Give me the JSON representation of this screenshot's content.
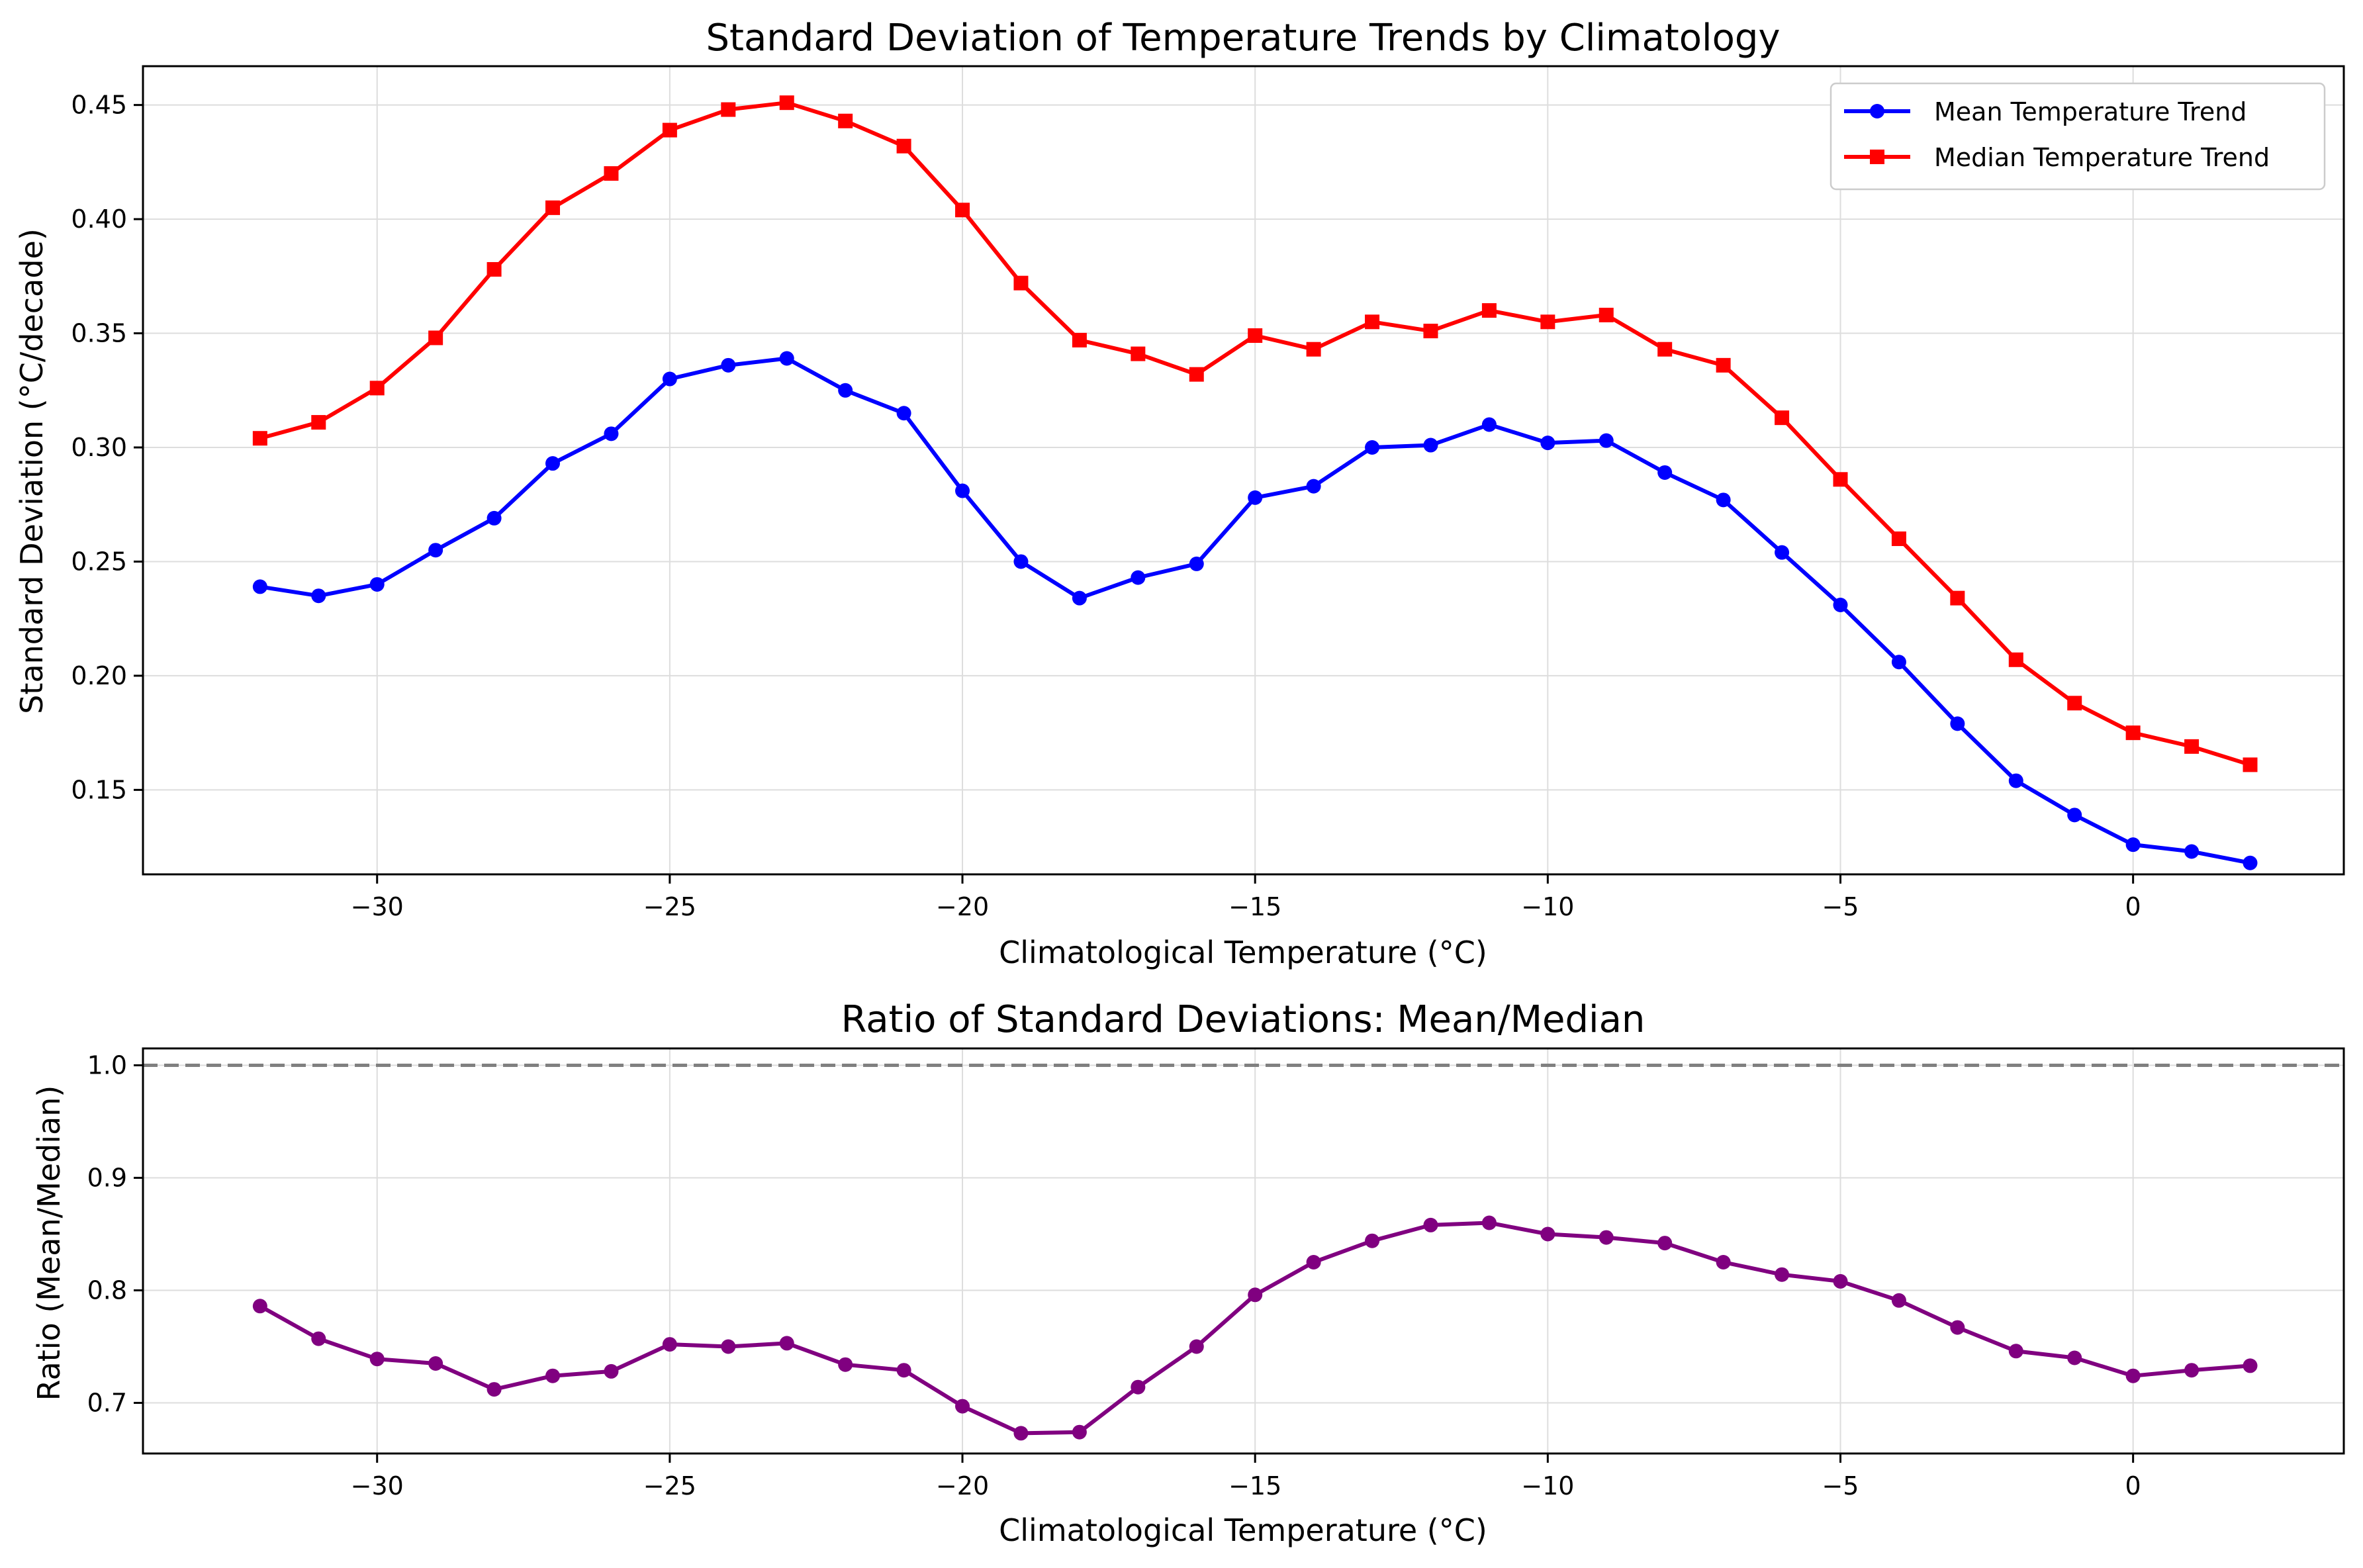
{
  "chart_data": [
    {
      "type": "line",
      "title": "Standard Deviation of Temperature Trends by Climatology",
      "xlabel": "Climatological Temperature (°C)",
      "ylabel": "Standard Deviation (°C/decade)",
      "xlim": [
        -34,
        3.6
      ],
      "ylim": [
        0.113,
        0.467
      ],
      "xticks": [
        -30,
        -25,
        -20,
        -15,
        -10,
        -5,
        0
      ],
      "xtick_labels": [
        "−30",
        "−25",
        "−20",
        "−15",
        "−10",
        "−5",
        "0"
      ],
      "yticks": [
        0.15,
        0.2,
        0.25,
        0.3,
        0.35,
        0.4,
        0.45
      ],
      "ytick_labels": [
        "0.15",
        "0.20",
        "0.25",
        "0.30",
        "0.35",
        "0.40",
        "0.45"
      ],
      "grid": true,
      "legend": "top-right",
      "x": [
        -32,
        -31,
        -30,
        -29,
        -28,
        -27,
        -26,
        -25,
        -24,
        -23,
        -22,
        -21,
        -20,
        -19,
        -18,
        -17,
        -16,
        -15,
        -14,
        -13,
        -12,
        -11,
        -10,
        -9,
        -8,
        -7,
        -6,
        -5,
        -4,
        -3,
        -2,
        -1,
        0,
        1,
        2
      ],
      "series": [
        {
          "name": "Mean Temperature Trend",
          "color": "#0000ff",
          "marker": "circle",
          "values": [
            0.239,
            0.235,
            0.24,
            0.255,
            0.269,
            0.293,
            0.306,
            0.33,
            0.336,
            0.339,
            0.325,
            0.315,
            0.281,
            0.25,
            0.234,
            0.243,
            0.249,
            0.278,
            0.283,
            0.3,
            0.301,
            0.31,
            0.302,
            0.303,
            0.289,
            0.277,
            0.254,
            0.231,
            0.206,
            0.179,
            0.154,
            0.139,
            0.126,
            0.123,
            0.118
          ]
        },
        {
          "name": "Median Temperature Trend",
          "color": "#ff0000",
          "marker": "square",
          "values": [
            0.304,
            0.311,
            0.326,
            0.348,
            0.378,
            0.405,
            0.42,
            0.439,
            0.448,
            0.451,
            0.443,
            0.432,
            0.404,
            0.372,
            0.347,
            0.341,
            0.332,
            0.349,
            0.343,
            0.355,
            0.351,
            0.36,
            0.355,
            0.358,
            0.343,
            0.336,
            0.313,
            0.286,
            0.26,
            0.234,
            0.207,
            0.188,
            0.175,
            0.169,
            0.161
          ]
        }
      ]
    },
    {
      "type": "line",
      "title": "Ratio of Standard Deviations: Mean/Median",
      "xlabel": "Climatological Temperature (°C)",
      "ylabel": "Ratio (Mean/Median)",
      "xlim": [
        -34,
        3.6
      ],
      "ylim": [
        0.655,
        1.015
      ],
      "xticks": [
        -30,
        -25,
        -20,
        -15,
        -10,
        -5,
        0
      ],
      "xtick_labels": [
        "−30",
        "−25",
        "−20",
        "−15",
        "−10",
        "−5",
        "0"
      ],
      "yticks": [
        0.7,
        0.8,
        0.9,
        1.0
      ],
      "ytick_labels": [
        "0.7",
        "0.8",
        "0.9",
        "1.0"
      ],
      "grid": true,
      "reference_line": {
        "y": 1.0,
        "style": "dashed",
        "color": "#808080"
      },
      "x": [
        -32,
        -31,
        -30,
        -29,
        -28,
        -27,
        -26,
        -25,
        -24,
        -23,
        -22,
        -21,
        -20,
        -19,
        -18,
        -17,
        -16,
        -15,
        -14,
        -13,
        -12,
        -11,
        -10,
        -9,
        -8,
        -7,
        -6,
        -5,
        -4,
        -3,
        -2,
        -1,
        0,
        1,
        2
      ],
      "series": [
        {
          "color": "#800080",
          "marker": "circle",
          "values": [
            0.786,
            0.757,
            0.739,
            0.735,
            0.712,
            0.724,
            0.728,
            0.752,
            0.75,
            0.753,
            0.734,
            0.729,
            0.697,
            0.673,
            0.674,
            0.714,
            0.75,
            0.796,
            0.825,
            0.844,
            0.858,
            0.86,
            0.85,
            0.847,
            0.842,
            0.825,
            0.814,
            0.808,
            0.791,
            0.767,
            0.746,
            0.74,
            0.724,
            0.729,
            0.733
          ]
        }
      ]
    }
  ]
}
